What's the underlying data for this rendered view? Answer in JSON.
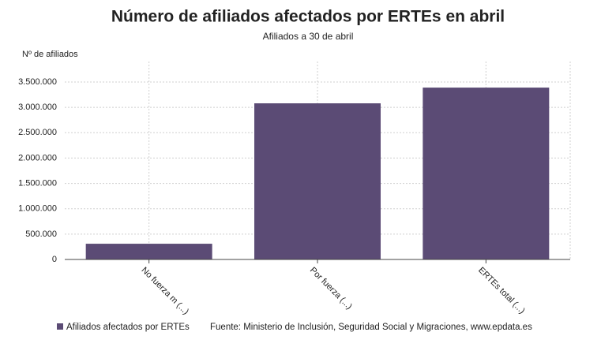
{
  "chart_data": {
    "type": "bar",
    "title": "Número de afiliados afectados por ERTEs en abril",
    "subtitle": "Afiliados a 30 de abril",
    "y_label": "Nº de afiliados",
    "categories": [
      "No fuerza m (...)",
      "Por fuerza (...)",
      "ERTEs total (...)"
    ],
    "series": [
      {
        "name": "Afiliados afectados por ERTEs",
        "color": "#5b4b75",
        "values": [
          310000,
          3080000,
          3390000
        ]
      }
    ],
    "ylim": [
      0,
      3500000
    ],
    "yticks": [
      0,
      {
        "value": 500000,
        "label": "500.000"
      },
      {
        "value": 1000000,
        "label": "1.000.000"
      },
      {
        "value": 1500000,
        "label": "1.500.000"
      },
      {
        "value": 2000000,
        "label": "2.000.000"
      },
      {
        "value": 2500000,
        "label": "2.500.000"
      },
      {
        "value": 3000000,
        "label": "3.000.000"
      },
      {
        "value": 3500000,
        "label": "3.500.000"
      }
    ],
    "grid": true,
    "source": "Fuente: Ministerio de Inclusión, Seguridad Social y Migraciones, www.epdata.es"
  }
}
